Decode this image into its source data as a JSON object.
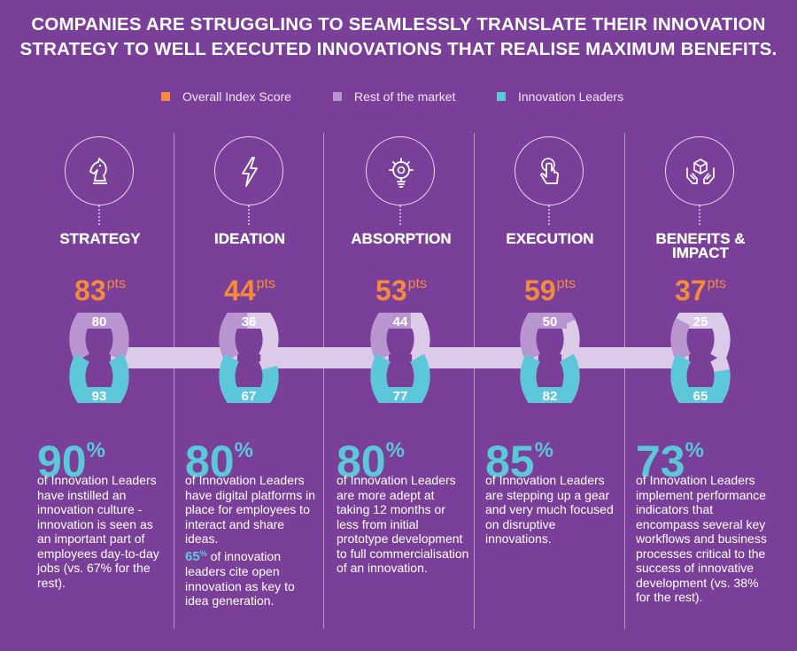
{
  "title": {
    "line1": "COMPANIES ARE STRUGGLING TO SEAMLESSLY TRANSLATE THEIR INNOVATION",
    "line2": "STRATEGY TO WELL EXECUTED INNOVATIONS THAT REALISE MAXIMUM BENEFITS."
  },
  "colors": {
    "background": "#7a3f98",
    "overall": "#f58a3d",
    "rest": "#b995cf",
    "leaders": "#5cc7d8",
    "link": "#dccbe8"
  },
  "legend": [
    {
      "label": "Overall Index Score",
      "color": "#f58a3d"
    },
    {
      "label": "Rest of the market",
      "color": "#b995cf"
    },
    {
      "label": "Innovation Leaders",
      "color": "#5cc7d8"
    }
  ],
  "chart_data": {
    "type": "bar",
    "title": "Companies are struggling to seamlessly translate their innovation strategy to well executed innovations that realise maximum benefits.",
    "categories": [
      "STRATEGY",
      "IDEATION",
      "ABSORPTION",
      "EXECUTION",
      "BENEFITS & IMPACT"
    ],
    "unit": "pts",
    "ylim": [
      0,
      100
    ],
    "series": [
      {
        "name": "Overall Index Score",
        "values": [
          83,
          44,
          53,
          59,
          37
        ]
      },
      {
        "name": "Rest of the market",
        "values": [
          80,
          36,
          44,
          50,
          25
        ]
      },
      {
        "name": "Innovation Leaders",
        "values": [
          93,
          67,
          77,
          82,
          65
        ]
      }
    ]
  },
  "stages": [
    {
      "name": "STRATEGY",
      "name_line2": "",
      "icon": "chess-knight-icon",
      "overall": "83",
      "rest": "80",
      "leaders": "93",
      "pct": "90",
      "desc": "of Innovation Leaders have instilled an innovation culture - innovation is seen as an important part of employees day-to-day jobs (vs. 67% for the rest).",
      "extra_num": "",
      "extra_sign": "",
      "extra_text": ""
    },
    {
      "name": "IDEATION",
      "name_line2": "",
      "icon": "lightning-bolt-icon",
      "overall": "44",
      "rest": "36",
      "leaders": "67",
      "pct": "80",
      "desc": "of Innovation Leaders have digital platforms in place for employees to interact and share ideas.",
      "extra_num": "65",
      "extra_sign": "%",
      "extra_text": " of innovation leaders cite open innovation as key to idea generation."
    },
    {
      "name": "ABSORPTION",
      "name_line2": "",
      "icon": "lightbulb-gear-icon",
      "overall": "53",
      "rest": "44",
      "leaders": "77",
      "pct": "80",
      "desc": "of Innovation Leaders are more adept at taking 12 months or less from initial prototype development to full commercialisation of an innovation.",
      "extra_num": "",
      "extra_sign": "",
      "extra_text": ""
    },
    {
      "name": "EXECUTION",
      "name_line2": "",
      "icon": "touch-hand-icon",
      "overall": "59",
      "rest": "50",
      "leaders": "82",
      "pct": "85",
      "desc": "of Innovation Leaders are stepping up a gear and very much focused on disruptive innovations.",
      "extra_num": "",
      "extra_sign": "",
      "extra_text": ""
    },
    {
      "name": "BENEFITS &",
      "name_line2": "IMPACT",
      "icon": "hands-box-icon",
      "overall": "37",
      "rest": "25",
      "leaders": "65",
      "pct": "73",
      "desc": "of Innovation Leaders implement performance indicators that encompass several key workflows and business processes critical to the success of innovative development (vs. 38% for the rest).",
      "extra_num": "",
      "extra_sign": "",
      "extra_text": ""
    }
  ],
  "labels": {
    "pts": "pts",
    "pct_sign": "%"
  }
}
